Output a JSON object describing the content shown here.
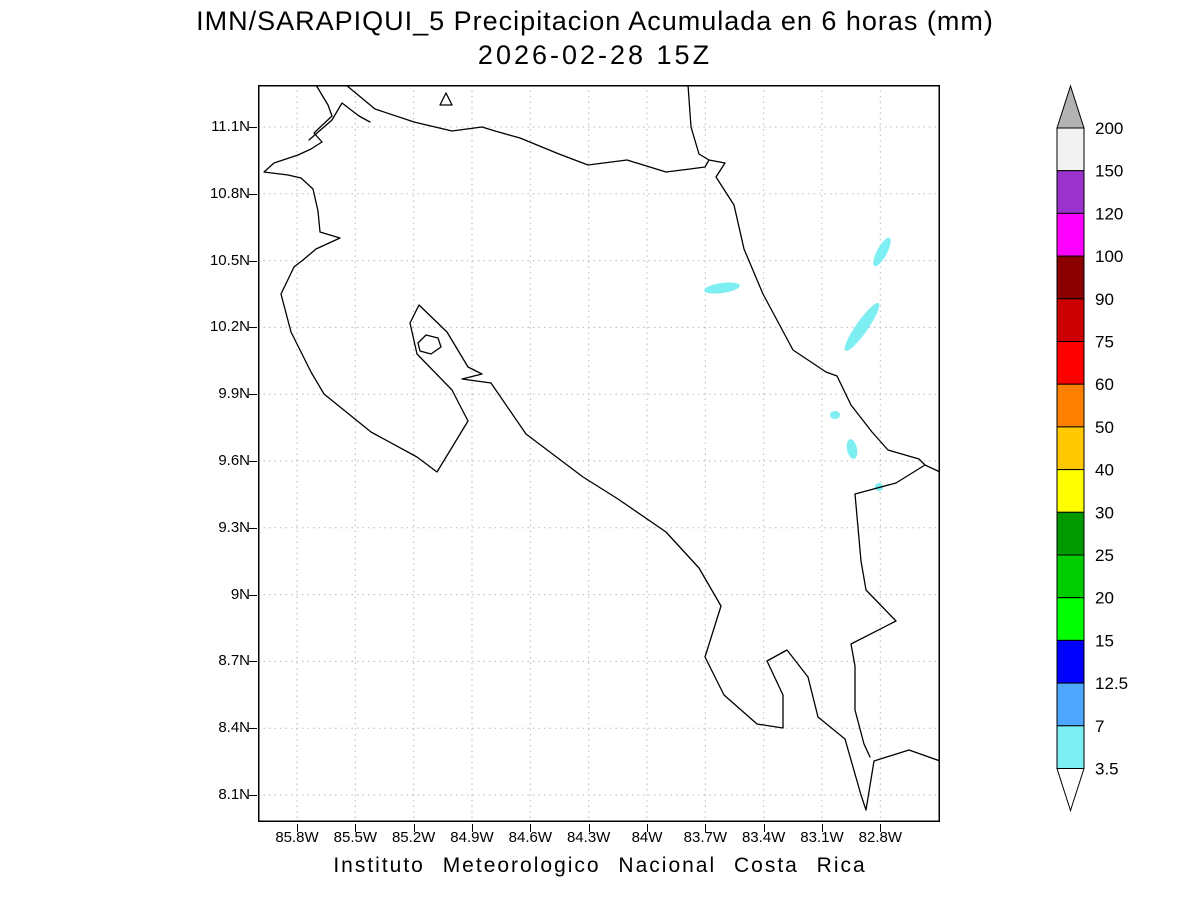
{
  "title": {
    "line1": "IMN/SARAPIQUI_5 Precipitacion Acumulada en 6 horas (mm)",
    "line2": "2026-02-28 15Z"
  },
  "footer": {
    "text": "Instituto Meteorologico Nacional Costa Rica"
  },
  "map": {
    "lat_tick_labels": [
      "11.1N",
      "10.8N",
      "10.5N",
      "10.2N",
      "9.9N",
      "9.6N",
      "9.3N",
      "9N",
      "8.7N",
      "8.4N",
      "8.1N"
    ],
    "lon_tick_labels": [
      "85.8W",
      "85.5W",
      "85.2W",
      "84.9W",
      "84.6W",
      "84.3W",
      "84W",
      "83.7W",
      "83.4W",
      "83.1W",
      "82.8W"
    ],
    "grid_color": "#b8b8b8",
    "coastline_color": "#000000",
    "frame_color": "#000000",
    "precip_patch_color": "#7deef2",
    "precip_patch_value_range_mm": "3.5-7"
  },
  "colorbar": {
    "levels_top_to_bottom": [
      "200",
      "150",
      "120",
      "100",
      "90",
      "75",
      "60",
      "50",
      "40",
      "30",
      "25",
      "20",
      "15",
      "12.5",
      "7",
      "3.5"
    ],
    "segment_colors_top_to_bottom": [
      "#f2f2f2",
      "#9933cc",
      "#ff00ff",
      "#8b0000",
      "#cc0000",
      "#ff0000",
      "#ff8000",
      "#ffc800",
      "#ffff00",
      "#009900",
      "#00cc00",
      "#00ff00",
      "#0000ff",
      "#4da6ff",
      "#7deef2"
    ],
    "above_max_color": "#b3b3b3",
    "below_min_color": "#ffffff"
  },
  "chart_data": {
    "type": "heatmap",
    "title": "IMN/SARAPIQUI_5 Precipitacion Acumulada en 6 horas (mm)",
    "subtitle": "2026-02-28 15Z",
    "x_ticks": [
      "85.8W",
      "85.5W",
      "85.2W",
      "84.9W",
      "84.6W",
      "84.3W",
      "84W",
      "83.7W",
      "83.4W",
      "83.1W",
      "82.8W"
    ],
    "y_ticks": [
      "11.1N",
      "10.8N",
      "10.5N",
      "10.2N",
      "9.9N",
      "9.6N",
      "9.3N",
      "9N",
      "8.7N",
      "8.4N",
      "8.1N"
    ],
    "colorbar_levels_mm": [
      3.5,
      7,
      12.5,
      15,
      20,
      25,
      30,
      40,
      50,
      60,
      75,
      90,
      100,
      120,
      150,
      200
    ],
    "data_summary": "Small patches of 3.5-7 mm accumulated precipitation along and offshore the Caribbean slope near 10.4N 83.6W, 10.5N 82.8W, 10.2-10.4N 82.9W, 9.8N 83.0W, 9.6N 82.95W and 9.5N 82.8W; rest of the domain below 3.5 mm"
  }
}
